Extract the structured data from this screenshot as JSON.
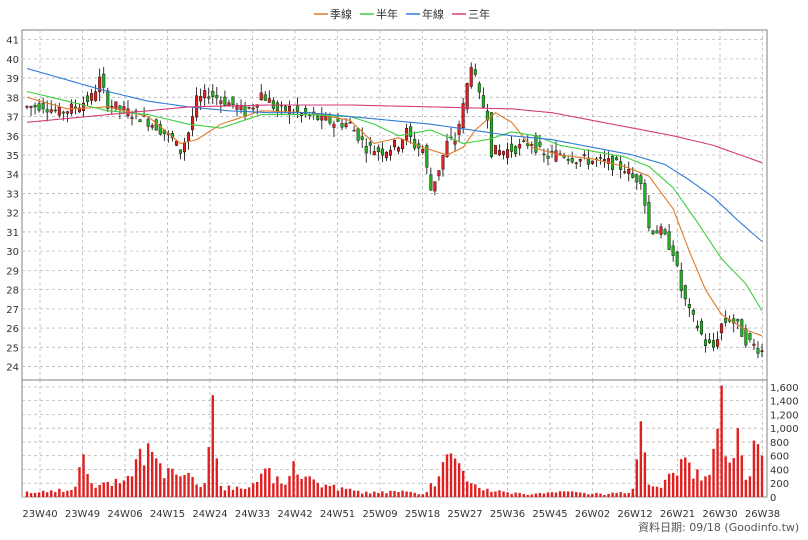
{
  "chart_data": {
    "type": "candlestick",
    "legend": [
      {
        "name": "季線",
        "color": "#e07b2a"
      },
      {
        "name": "半年",
        "color": "#3fcf3f"
      },
      {
        "name": "年線",
        "color": "#2e7bd6"
      },
      {
        "name": "三年",
        "color": "#d63c7a"
      }
    ],
    "price_axis": {
      "ylim": [
        23.3,
        41.5
      ],
      "ticks": [
        24,
        25,
        26,
        27,
        28,
        29,
        30,
        31,
        32,
        33,
        34,
        35,
        36,
        37,
        38,
        39,
        40,
        41
      ]
    },
    "volume_axis": {
      "ylim": [
        0,
        1700
      ],
      "ticks": [
        0,
        200,
        400,
        600,
        800,
        "1,000",
        "1,200",
        "1,400",
        "1,600"
      ],
      "tick_values": [
        0,
        200,
        400,
        600,
        800,
        1000,
        1200,
        1400,
        1600
      ]
    },
    "x_ticks": [
      "23W40",
      "23W49",
      "24W06",
      "24W15",
      "24W24",
      "24W33",
      "24W42",
      "24W51",
      "25W09",
      "25W18",
      "25W27",
      "25W36",
      "25W45",
      "26W02",
      "26W12",
      "26W21",
      "26W30",
      "26W38"
    ],
    "grid": true,
    "colors": {
      "up": "#e02020",
      "down": "#20b020",
      "volume": "#e02020",
      "grid": "#b8b8b8"
    },
    "series_ma": {
      "季線": [
        [
          0,
          38.0
        ],
        [
          10,
          37.4
        ],
        [
          20,
          37.5
        ],
        [
          30,
          37.0
        ],
        [
          38,
          35.6
        ],
        [
          42,
          35.8
        ],
        [
          48,
          36.6
        ],
        [
          58,
          37.3
        ],
        [
          70,
          37.2
        ],
        [
          80,
          36.8
        ],
        [
          86,
          35.6
        ],
        [
          92,
          35.9
        ],
        [
          98,
          35.4
        ],
        [
          104,
          35.0
        ],
        [
          108,
          35.4
        ],
        [
          111,
          36.3
        ],
        [
          116,
          37.2
        ],
        [
          120,
          36.7
        ],
        [
          125,
          35.4
        ],
        [
          132,
          35.0
        ],
        [
          140,
          34.8
        ],
        [
          148,
          34.4
        ],
        [
          154,
          33.9
        ],
        [
          160,
          32.2
        ],
        [
          164,
          30.0
        ],
        [
          168,
          28.0
        ],
        [
          172,
          26.7
        ],
        [
          178,
          25.9
        ],
        [
          182,
          25.6
        ]
      ],
      "半年": [
        [
          0,
          38.3
        ],
        [
          10,
          37.8
        ],
        [
          20,
          37.3
        ],
        [
          30,
          37.1
        ],
        [
          40,
          36.6
        ],
        [
          48,
          36.4
        ],
        [
          58,
          37.1
        ],
        [
          70,
          37.1
        ],
        [
          80,
          37.0
        ],
        [
          86,
          36.6
        ],
        [
          92,
          36.0
        ],
        [
          100,
          36.3
        ],
        [
          108,
          35.6
        ],
        [
          114,
          35.8
        ],
        [
          120,
          36.2
        ],
        [
          126,
          36.0
        ],
        [
          132,
          35.5
        ],
        [
          140,
          35.2
        ],
        [
          148,
          34.9
        ],
        [
          154,
          34.4
        ],
        [
          160,
          33.3
        ],
        [
          166,
          31.5
        ],
        [
          172,
          29.6
        ],
        [
          178,
          28.3
        ],
        [
          182,
          26.9
        ]
      ],
      "年線": [
        [
          0,
          39.5
        ],
        [
          10,
          38.9
        ],
        [
          20,
          38.3
        ],
        [
          30,
          37.8
        ],
        [
          40,
          37.5
        ],
        [
          50,
          37.3
        ],
        [
          60,
          37.2
        ],
        [
          70,
          37.2
        ],
        [
          80,
          37.0
        ],
        [
          90,
          36.8
        ],
        [
          100,
          36.6
        ],
        [
          110,
          36.3
        ],
        [
          120,
          36.0
        ],
        [
          130,
          35.8
        ],
        [
          140,
          35.4
        ],
        [
          150,
          35.0
        ],
        [
          158,
          34.5
        ],
        [
          164,
          33.7
        ],
        [
          170,
          32.8
        ],
        [
          176,
          31.6
        ],
        [
          182,
          30.5
        ]
      ],
      "三年": [
        [
          0,
          36.7
        ],
        [
          20,
          37.1
        ],
        [
          40,
          37.5
        ],
        [
          60,
          37.6
        ],
        [
          80,
          37.6
        ],
        [
          100,
          37.5
        ],
        [
          120,
          37.4
        ],
        [
          130,
          37.2
        ],
        [
          140,
          36.8
        ],
        [
          150,
          36.4
        ],
        [
          160,
          36.0
        ],
        [
          170,
          35.5
        ],
        [
          182,
          34.6
        ]
      ]
    },
    "price_anchors": [
      [
        0,
        37.5
      ],
      [
        4,
        37.6
      ],
      [
        8,
        37.2
      ],
      [
        12,
        37.5
      ],
      [
        16,
        38.0
      ],
      [
        18,
        38.9
      ],
      [
        20,
        37.7
      ],
      [
        24,
        37.3
      ],
      [
        28,
        37.0
      ],
      [
        32,
        36.5
      ],
      [
        36,
        35.8
      ],
      [
        38,
        35.2
      ],
      [
        40,
        36.2
      ],
      [
        42,
        37.8
      ],
      [
        45,
        38.2
      ],
      [
        48,
        37.9
      ],
      [
        50,
        37.7
      ],
      [
        52,
        37.5
      ],
      [
        54,
        37.2
      ],
      [
        56,
        37.6
      ],
      [
        58,
        38.2
      ],
      [
        60,
        37.8
      ],
      [
        62,
        37.3
      ],
      [
        65,
        37.4
      ],
      [
        68,
        37.1
      ],
      [
        72,
        36.9
      ],
      [
        76,
        36.7
      ],
      [
        80,
        36.6
      ],
      [
        84,
        35.4
      ],
      [
        88,
        35.2
      ],
      [
        92,
        35.6
      ],
      [
        94,
        36.2
      ],
      [
        96,
        35.5
      ],
      [
        98,
        35.3
      ],
      [
        100,
        33.2
      ],
      [
        102,
        34.3
      ],
      [
        104,
        35.6
      ],
      [
        106,
        35.8
      ],
      [
        108,
        37.5
      ],
      [
        110,
        39.8
      ],
      [
        112,
        38.0
      ],
      [
        114,
        37.1
      ],
      [
        115,
        35.2
      ],
      [
        118,
        35.2
      ],
      [
        122,
        35.4
      ],
      [
        125,
        35.7
      ],
      [
        128,
        34.9
      ],
      [
        132,
        35.1
      ],
      [
        136,
        34.8
      ],
      [
        140,
        34.7
      ],
      [
        144,
        34.6
      ],
      [
        148,
        34.3
      ],
      [
        150,
        33.8
      ],
      [
        152,
        33.8
      ],
      [
        154,
        31.2
      ],
      [
        157,
        31.0
      ],
      [
        160,
        30.0
      ],
      [
        162,
        28.0
      ],
      [
        164,
        26.8
      ],
      [
        166,
        26.1
      ],
      [
        168,
        25.2
      ],
      [
        170,
        25.0
      ],
      [
        172,
        26.2
      ],
      [
        174,
        26.5
      ],
      [
        176,
        26.1
      ],
      [
        178,
        25.4
      ],
      [
        180,
        25.1
      ],
      [
        182,
        24.8
      ]
    ],
    "volume_anchors": [
      [
        0,
        80
      ],
      [
        4,
        90
      ],
      [
        8,
        120
      ],
      [
        12,
        150
      ],
      [
        14,
        620
      ],
      [
        16,
        200
      ],
      [
        20,
        220
      ],
      [
        24,
        240
      ],
      [
        26,
        300
      ],
      [
        28,
        700
      ],
      [
        30,
        780
      ],
      [
        32,
        560
      ],
      [
        35,
        420
      ],
      [
        38,
        300
      ],
      [
        40,
        350
      ],
      [
        42,
        180
      ],
      [
        44,
        200
      ],
      [
        46,
        1480
      ],
      [
        48,
        160
      ],
      [
        52,
        150
      ],
      [
        56,
        200
      ],
      [
        60,
        420
      ],
      [
        62,
        300
      ],
      [
        64,
        180
      ],
      [
        66,
        520
      ],
      [
        70,
        300
      ],
      [
        74,
        180
      ],
      [
        78,
        140
      ],
      [
        82,
        90
      ],
      [
        86,
        80
      ],
      [
        90,
        90
      ],
      [
        94,
        80
      ],
      [
        96,
        60
      ],
      [
        98,
        40
      ],
      [
        100,
        200
      ],
      [
        102,
        300
      ],
      [
        104,
        620
      ],
      [
        106,
        560
      ],
      [
        108,
        380
      ],
      [
        110,
        200
      ],
      [
        114,
        120
      ],
      [
        118,
        80
      ],
      [
        122,
        60
      ],
      [
        126,
        50
      ],
      [
        130,
        70
      ],
      [
        134,
        80
      ],
      [
        138,
        60
      ],
      [
        142,
        50
      ],
      [
        146,
        60
      ],
      [
        150,
        120
      ],
      [
        152,
        1100
      ],
      [
        154,
        180
      ],
      [
        156,
        150
      ],
      [
        158,
        250
      ],
      [
        160,
        350
      ],
      [
        162,
        550
      ],
      [
        164,
        500
      ],
      [
        166,
        400
      ],
      [
        168,
        300
      ],
      [
        170,
        700
      ],
      [
        172,
        1620
      ],
      [
        174,
        500
      ],
      [
        176,
        1000
      ],
      [
        178,
        250
      ],
      [
        180,
        820
      ],
      [
        182,
        600
      ]
    ]
  },
  "footer": {
    "source": "資料日期: 09/18  (Goodinfo.tw)"
  }
}
